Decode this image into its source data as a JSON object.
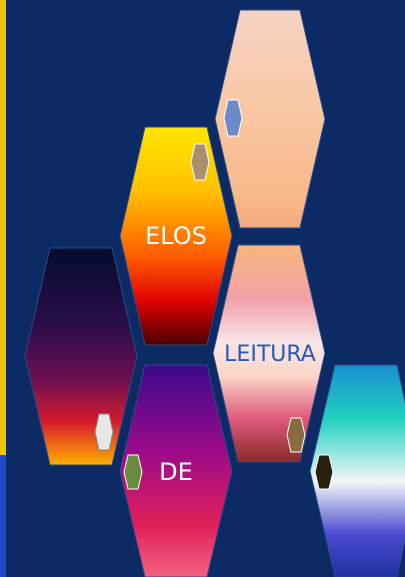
{
  "hexagons": [
    {
      "label": "ELOS"
    },
    {
      "label": "LEITURA"
    },
    {
      "label": "DE"
    }
  ]
}
